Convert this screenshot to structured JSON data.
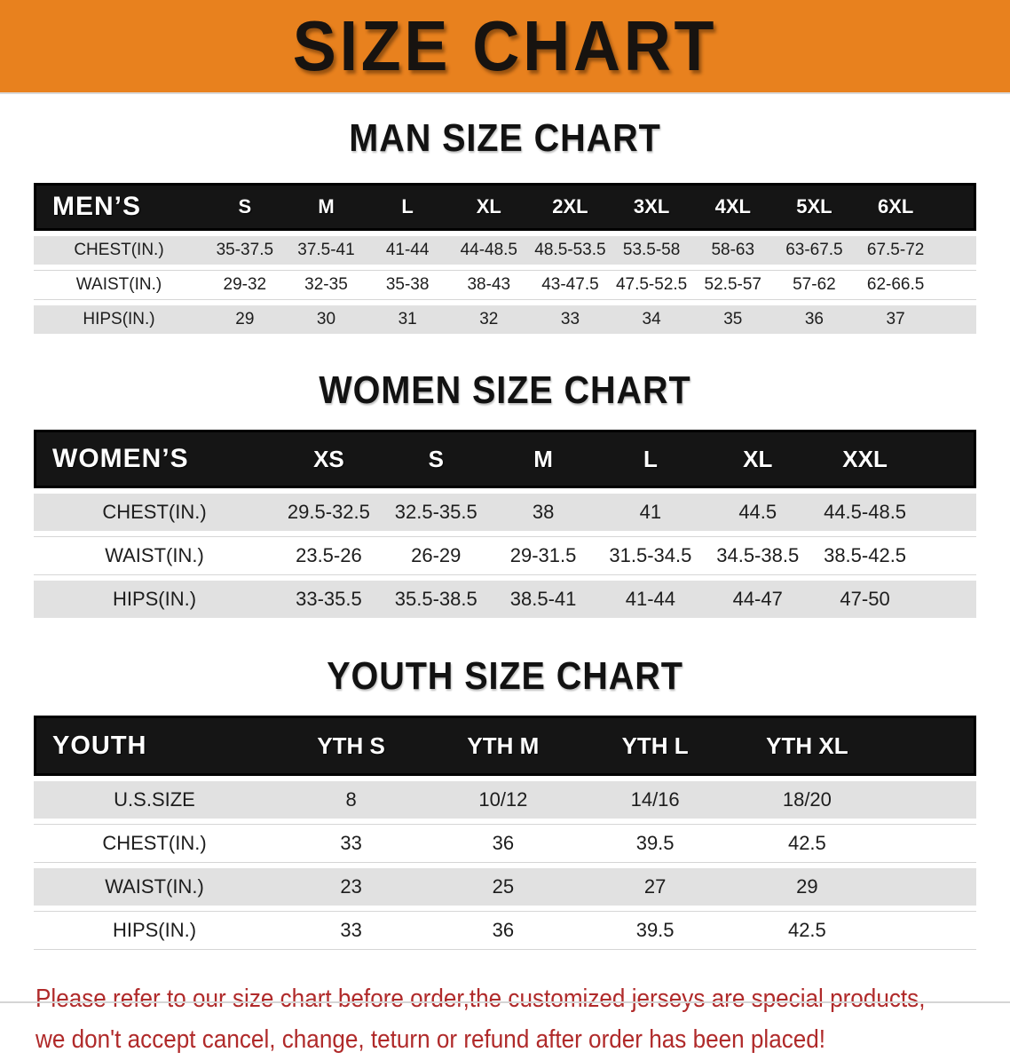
{
  "banner": {
    "title": "SIZE CHART"
  },
  "colors": {
    "banner_bg": "#E8811E",
    "header_bar_bg": "#151515",
    "header_bar_text": "#FFFFFF",
    "row_stripe": "#E1E1E1",
    "row_plain": "#FFFFFF",
    "title_text": "#121212",
    "footer_text": "#B02A2A"
  },
  "chart_data": [
    {
      "type": "table",
      "title": "MAN SIZE CHART",
      "corner_label": "MEN’S",
      "columns": [
        "S",
        "M",
        "L",
        "XL",
        "2XL",
        "3XL",
        "4XL",
        "5XL",
        "6XL"
      ],
      "rows": [
        {
          "label": "CHEST(IN.)",
          "values": [
            "35-37.5",
            "37.5-41",
            "41-44",
            "44-48.5",
            "48.5-53.5",
            "53.5-58",
            "58-63",
            "63-67.5",
            "67.5-72"
          ]
        },
        {
          "label": "WAIST(IN.)",
          "values": [
            "29-32",
            "32-35",
            "35-38",
            "38-43",
            "43-47.5",
            "47.5-52.5",
            "52.5-57",
            "57-62",
            "62-66.5"
          ]
        },
        {
          "label": "HIPS(IN.)",
          "values": [
            "29",
            "30",
            "31",
            "32",
            "33",
            "34",
            "35",
            "36",
            "37"
          ]
        }
      ]
    },
    {
      "type": "table",
      "title": "WOMEN SIZE CHART",
      "corner_label": "WOMEN’S",
      "columns": [
        "XS",
        "S",
        "M",
        "L",
        "XL",
        "XXL"
      ],
      "rows": [
        {
          "label": "CHEST(IN.)",
          "values": [
            "29.5-32.5",
            "32.5-35.5",
            "38",
            "41",
            "44.5",
            "44.5-48.5"
          ]
        },
        {
          "label": "WAIST(IN.)",
          "values": [
            "23.5-26",
            "26-29",
            "29-31.5",
            "31.5-34.5",
            "34.5-38.5",
            "38.5-42.5"
          ]
        },
        {
          "label": "HIPS(IN.)",
          "values": [
            "33-35.5",
            "35.5-38.5",
            "38.5-41",
            "41-44",
            "44-47",
            "47-50"
          ]
        }
      ]
    },
    {
      "type": "table",
      "title": "YOUTH SIZE CHART",
      "corner_label": "YOUTH",
      "columns": [
        "YTH S",
        "YTH M",
        "YTH L",
        "YTH XL"
      ],
      "rows": [
        {
          "label": "U.S.SIZE",
          "values": [
            "8",
            "10/12",
            "14/16",
            "18/20"
          ]
        },
        {
          "label": "CHEST(IN.)",
          "values": [
            "33",
            "36",
            "39.5",
            "42.5"
          ]
        },
        {
          "label": "WAIST(IN.)",
          "values": [
            "23",
            "25",
            "27",
            "29"
          ]
        },
        {
          "label": "HIPS(IN.)",
          "values": [
            "33",
            "36",
            "39.5",
            "42.5"
          ]
        }
      ]
    }
  ],
  "footer": {
    "line1": "Please refer to our size chart before order,the customized jerseys are special products,",
    "line2": "we don't accept cancel, change, teturn or refund after order has been placed!"
  }
}
